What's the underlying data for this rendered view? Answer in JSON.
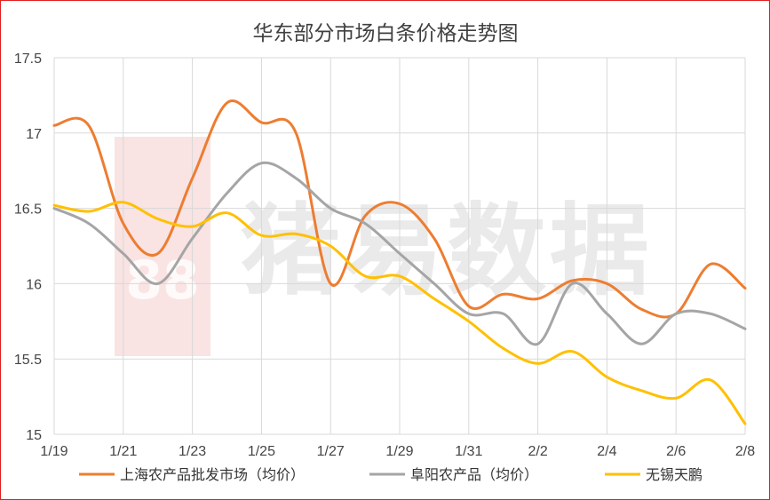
{
  "chart_data": {
    "type": "line",
    "title": "华东部分市场白条价格走势图",
    "xlabel": "",
    "ylabel": "",
    "x_tick_labels": [
      "1/19",
      "1/21",
      "1/23",
      "1/25",
      "1/27",
      "1/29",
      "1/31",
      "2/2",
      "2/4",
      "2/6",
      "2/8"
    ],
    "y_tick_labels": [
      "15",
      "15.5",
      "16",
      "16.5",
      "17",
      "17.5"
    ],
    "ylim": [
      15,
      17.5
    ],
    "grid": "vertical and horizontal",
    "legend_position": "bottom",
    "x": [
      "1/19",
      "1/20",
      "1/21",
      "1/22",
      "1/23",
      "1/24",
      "1/25",
      "1/26",
      "1/27",
      "1/28",
      "1/29",
      "1/30",
      "1/31",
      "2/1",
      "2/2",
      "2/3",
      "2/4",
      "2/5",
      "2/6",
      "2/7",
      "2/8"
    ],
    "series": [
      {
        "name": "上海农产品批发市场（均价）",
        "color": "#ED7D31",
        "values": [
          17.05,
          17.05,
          16.4,
          16.2,
          16.7,
          17.2,
          17.07,
          17.0,
          16.0,
          16.45,
          16.53,
          16.3,
          15.85,
          15.93,
          15.9,
          16.02,
          16.0,
          15.83,
          15.8,
          16.13,
          15.97
        ]
      },
      {
        "name": "阜阳农产品（均价）",
        "color": "#A5A5A5",
        "values": [
          16.5,
          16.4,
          16.2,
          16.0,
          16.3,
          16.6,
          16.8,
          16.7,
          16.5,
          16.4,
          16.2,
          16.0,
          15.8,
          15.8,
          15.6,
          16.0,
          15.8,
          15.6,
          15.8,
          15.8,
          15.7
        ]
      },
      {
        "name": "无锡天鹏",
        "color": "#FFC000",
        "values": [
          16.52,
          16.48,
          16.54,
          16.43,
          16.38,
          16.47,
          16.32,
          16.33,
          16.25,
          16.05,
          16.05,
          15.9,
          15.75,
          15.57,
          15.47,
          15.55,
          15.38,
          15.29,
          15.24,
          15.36,
          15.07
        ]
      }
    ]
  },
  "watermark": {
    "text": "猪易数据",
    "badge": "88"
  }
}
